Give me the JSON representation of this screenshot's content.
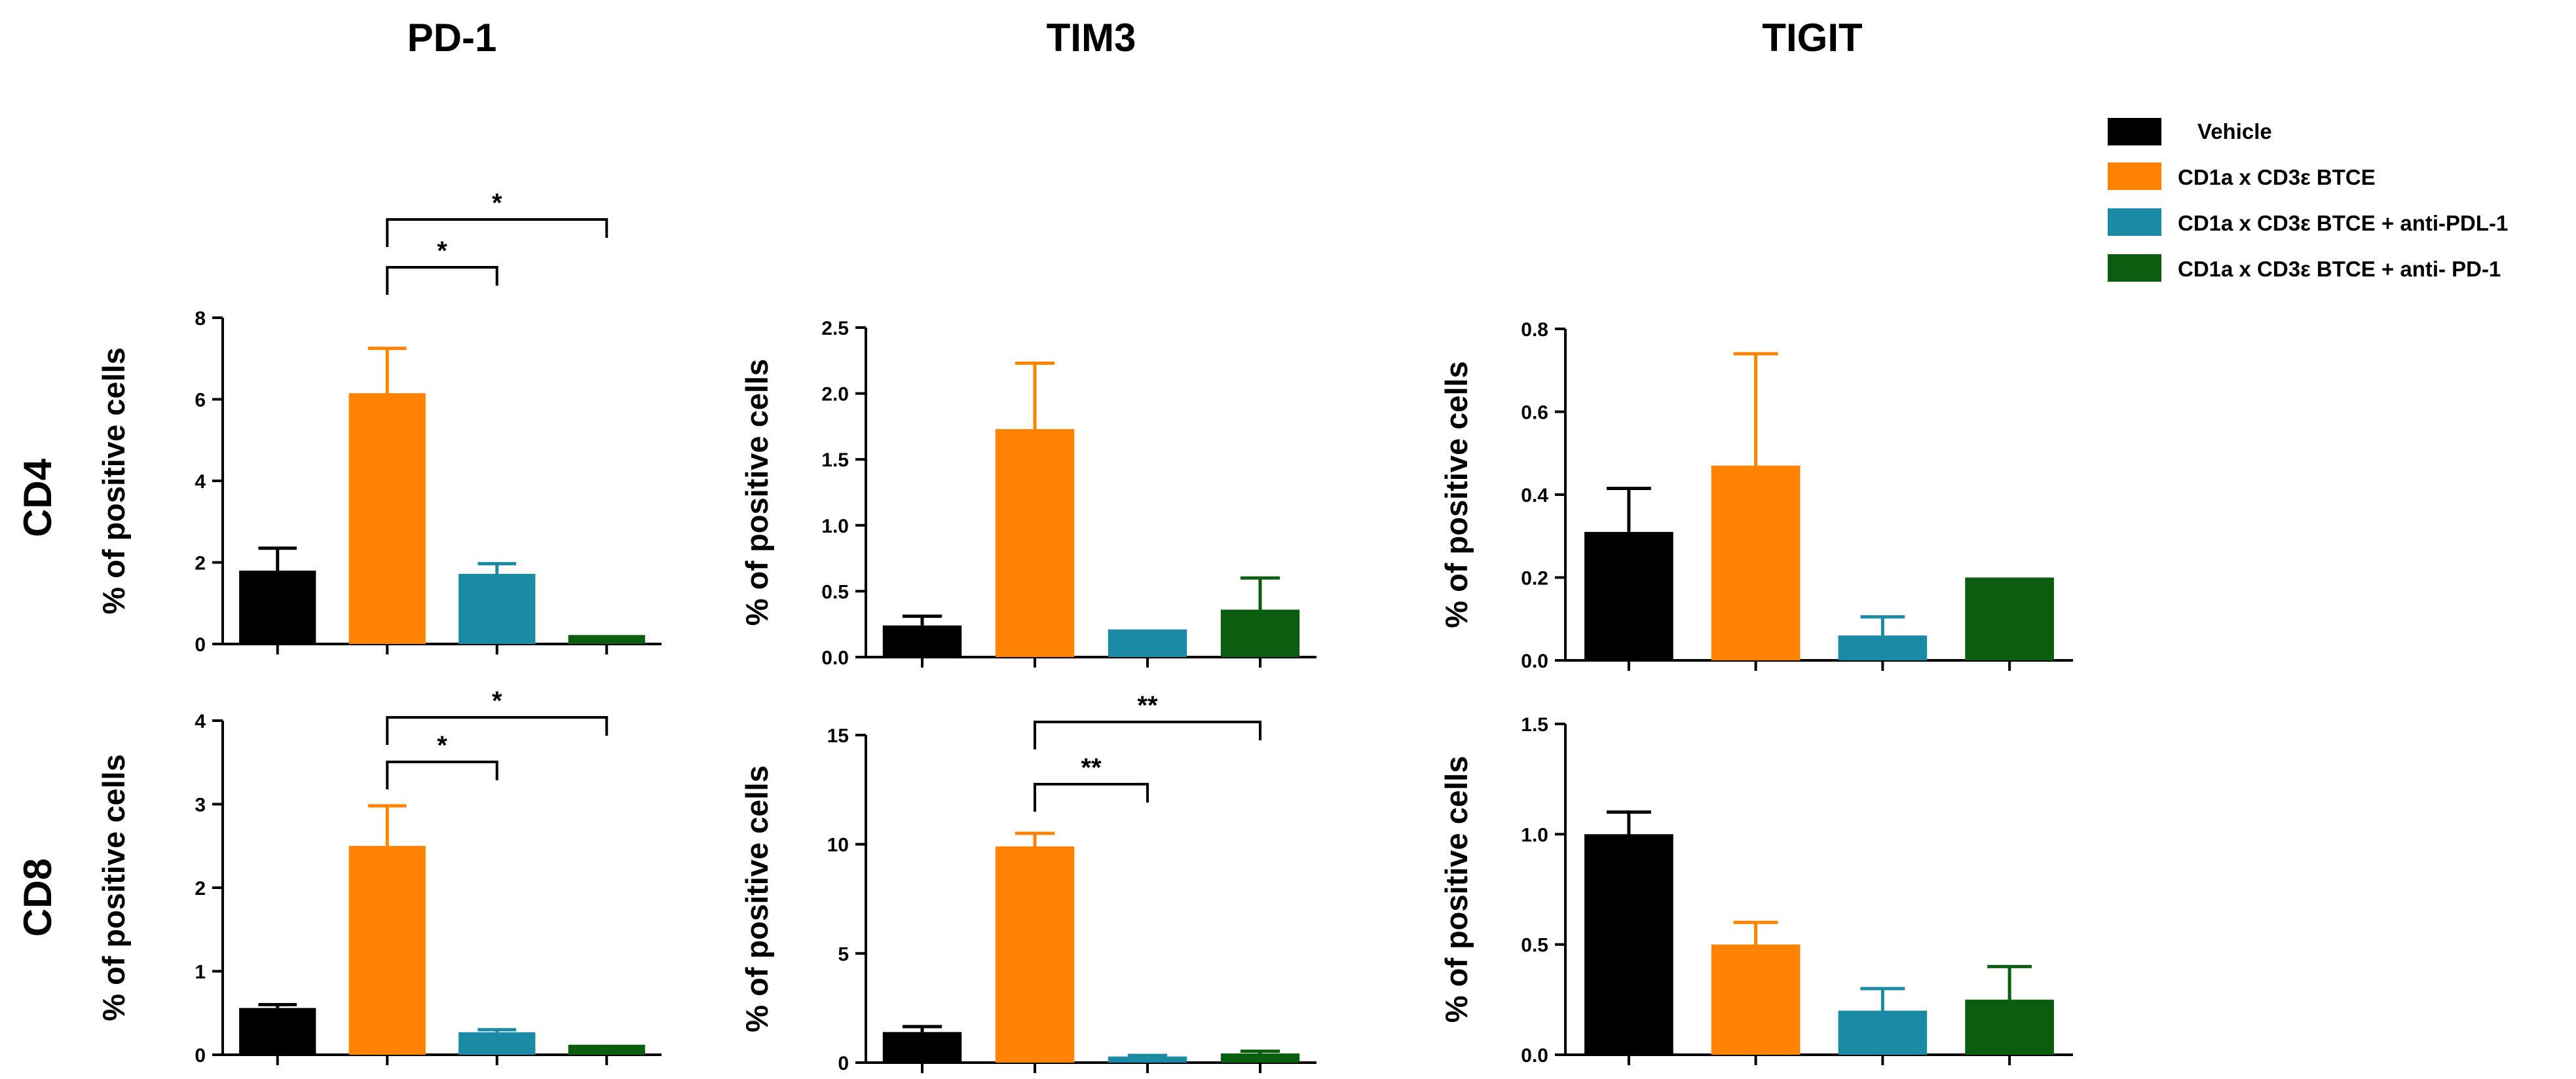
{
  "figure": {
    "column_titles": [
      "PD-1",
      "TIM3",
      "TIGIT"
    ],
    "row_titles": [
      "CD4",
      "CD8"
    ]
  },
  "legend": {
    "placement": "top-right",
    "entries": [
      {
        "label": "Vehicle",
        "color": "#000000"
      },
      {
        "label": "CD1a x CD3ε BTCE",
        "color": "#ff8200"
      },
      {
        "label": "CD1a x CD3ε BTCE  + anti-PDL-1",
        "color": "#1a8aa5"
      },
      {
        "label": "CD1a x CD3ε BTCE  + anti- PD-1",
        "color": "#0b5e10"
      }
    ]
  },
  "chart_data": [
    {
      "type": "bar",
      "marker": "PD-1",
      "population": "CD4",
      "ylabel": "% of positive cells",
      "ylim": [
        0,
        8
      ],
      "yticks": [
        0,
        2,
        4,
        6,
        8
      ],
      "tick_labels": [
        "0",
        "2",
        "4",
        "6",
        "8"
      ],
      "values": [
        1.8,
        6.15,
        1.72,
        0.22
      ],
      "errors": [
        0.55,
        1.1,
        0.25,
        0.0
      ],
      "significance": [
        {
          "from": 1,
          "to": 2,
          "label": "*"
        },
        {
          "from": 1,
          "to": 3,
          "label": "*"
        }
      ]
    },
    {
      "type": "bar",
      "marker": "TIM3",
      "population": "CD4",
      "ylabel": "% of positive cells",
      "ylim": [
        0,
        2.5
      ],
      "yticks": [
        0,
        0.5,
        1.0,
        1.5,
        2.0,
        2.5
      ],
      "tick_labels": [
        "0.0",
        "0.5",
        "1.0",
        "1.5",
        "2.0",
        "2.5"
      ],
      "values": [
        0.24,
        1.73,
        0.21,
        0.36
      ],
      "errors": [
        0.07,
        0.5,
        0.0,
        0.24
      ],
      "significance": []
    },
    {
      "type": "bar",
      "marker": "TIGIT",
      "population": "CD4",
      "ylabel": "% of positive cells",
      "ylim": [
        0,
        0.8
      ],
      "yticks": [
        0,
        0.2,
        0.4,
        0.6,
        0.8
      ],
      "tick_labels": [
        "0.0",
        "0.2",
        "0.4",
        "0.6",
        "0.8"
      ],
      "values": [
        0.31,
        0.47,
        0.06,
        0.2
      ],
      "errors": [
        0.105,
        0.27,
        0.045,
        0.0
      ],
      "significance": []
    },
    {
      "type": "bar",
      "marker": "PD-1",
      "population": "CD8",
      "ylabel": "% of positive cells",
      "ylim": [
        0,
        4
      ],
      "yticks": [
        0,
        1,
        2,
        3,
        4
      ],
      "tick_labels": [
        "0",
        "1",
        "2",
        "3",
        "4"
      ],
      "values": [
        0.56,
        2.5,
        0.27,
        0.12
      ],
      "errors": [
        0.04,
        0.48,
        0.03,
        0.0
      ],
      "significance": [
        {
          "from": 1,
          "to": 2,
          "label": "*"
        },
        {
          "from": 1,
          "to": 3,
          "label": "*"
        }
      ]
    },
    {
      "type": "bar",
      "marker": "TIM3",
      "population": "CD8",
      "ylabel": "% of positive cells",
      "ylim": [
        0,
        15
      ],
      "yticks": [
        0,
        5,
        10,
        15
      ],
      "tick_labels": [
        "0",
        "5",
        "10",
        "15"
      ],
      "values": [
        1.4,
        9.9,
        0.28,
        0.42
      ],
      "errors": [
        0.25,
        0.6,
        0.05,
        0.1
      ],
      "significance": [
        {
          "from": 1,
          "to": 2,
          "label": "**"
        },
        {
          "from": 1,
          "to": 3,
          "label": "**"
        }
      ]
    },
    {
      "type": "bar",
      "marker": "TIGIT",
      "population": "CD8",
      "ylabel": "% of positive cells",
      "ylim": [
        0,
        1.5
      ],
      "yticks": [
        0,
        0.5,
        1.0,
        1.5
      ],
      "tick_labels": [
        "0.0",
        "0.5",
        "1.0",
        "1.5"
      ],
      "values": [
        1.0,
        0.5,
        0.2,
        0.25
      ],
      "errors": [
        0.1,
        0.1,
        0.1,
        0.15
      ],
      "significance": []
    }
  ]
}
